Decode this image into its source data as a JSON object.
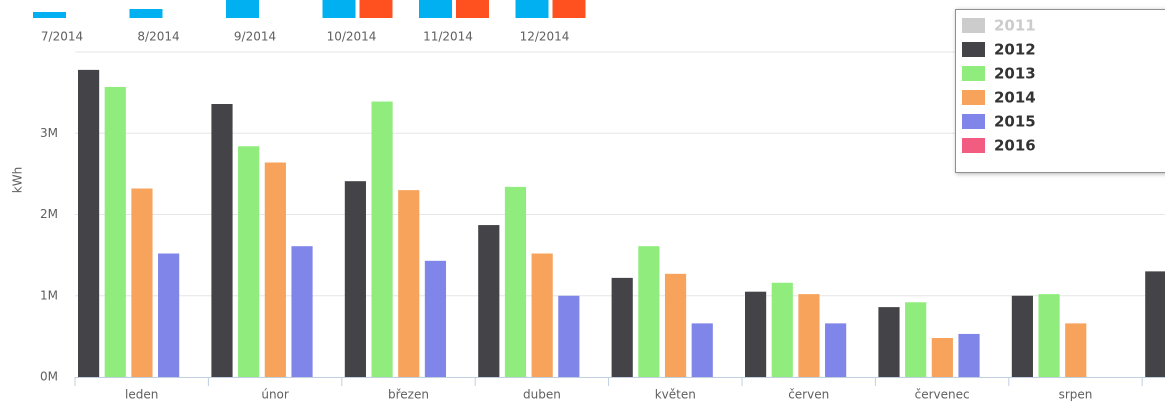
{
  "chart_data": [
    {
      "type": "bar",
      "y_label": "kWh",
      "categories": [
        "leden",
        "únor",
        "březen",
        "duben",
        "květen",
        "červen",
        "červenec",
        "srpen",
        null
      ],
      "series": [
        {
          "name": "2011",
          "color": "#cccccc",
          "visible": false,
          "values": [
            null,
            null,
            null,
            null,
            null,
            null,
            null,
            null,
            null
          ]
        },
        {
          "name": "2012",
          "color": "#434348",
          "values": [
            3780000,
            3360000,
            2410000,
            1870000,
            1220000,
            1050000,
            860000,
            1000000,
            1300000
          ]
        },
        {
          "name": "2013",
          "color": "#90ed7d",
          "values": [
            3570000,
            2840000,
            3390000,
            2340000,
            1610000,
            1160000,
            920000,
            1020000,
            null
          ]
        },
        {
          "name": "2014",
          "color": "#f7a35c",
          "values": [
            2320000,
            2640000,
            2300000,
            1520000,
            1270000,
            1020000,
            480000,
            660000,
            null
          ]
        },
        {
          "name": "2015",
          "color": "#8085e9",
          "values": [
            1520000,
            1610000,
            1430000,
            1000000,
            660000,
            660000,
            530000,
            null,
            null
          ]
        },
        {
          "name": "2016",
          "color": "#f15c80",
          "values": [
            null,
            null,
            null,
            null,
            null,
            null,
            null,
            null,
            null
          ]
        }
      ],
      "ylim": [
        0,
        4000000
      ],
      "yticks": [
        {
          "value": 0,
          "label": "0M"
        },
        {
          "value": 1000000,
          "label": "1M"
        },
        {
          "value": 2000000,
          "label": "2M"
        },
        {
          "value": 3000000,
          "label": "3M"
        }
      ],
      "grid": true,
      "legend": "top-right"
    },
    {
      "type": "bar",
      "categories": [
        "7/2014",
        "8/2014",
        "9/2014",
        "10/2014",
        "11/2014",
        "12/2014"
      ],
      "series": [
        {
          "color": "#00b0f0",
          "values": [
            6,
            9,
            18,
            18,
            18,
            18
          ]
        },
        {
          "color": "#ff5020",
          "values": [
            null,
            null,
            null,
            18,
            18,
            18
          ]
        }
      ]
    }
  ]
}
